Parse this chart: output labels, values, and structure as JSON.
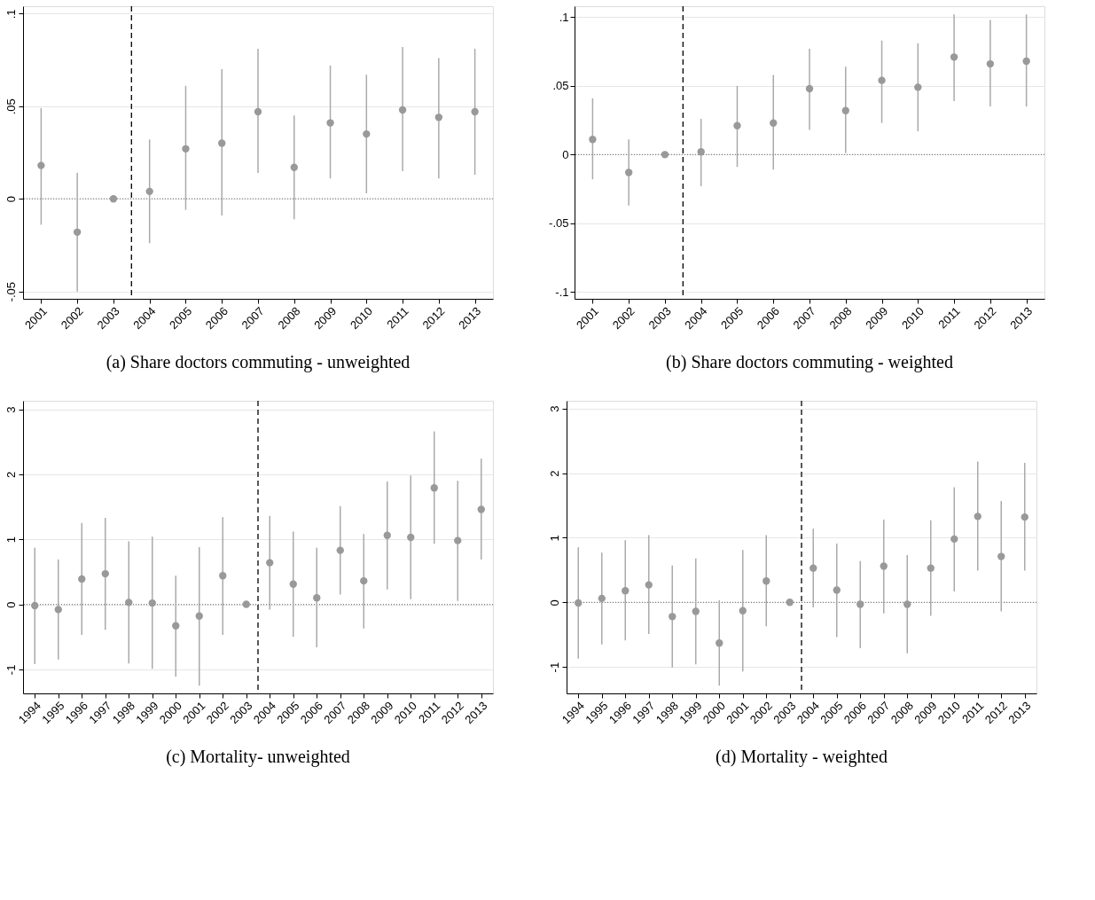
{
  "chart_data": [
    {
      "type": "scatter",
      "title": "(a) Share doctors commuting - unweighted",
      "color": "#999999",
      "marker": "circle",
      "grid": "y",
      "x": [
        2001,
        2002,
        2003,
        2004,
        2005,
        2006,
        2007,
        2008,
        2009,
        2010,
        2011,
        2012,
        2013
      ],
      "values": [
        0.018,
        -0.018,
        0,
        0.004,
        0.027,
        0.03,
        0.047,
        0.017,
        0.041,
        0.035,
        0.048,
        0.044,
        0.047
      ],
      "errors": [
        [
          -0.014,
          0.049
        ],
        [
          -0.05,
          0.014
        ],
        null,
        [
          -0.024,
          0.032
        ],
        [
          -0.006,
          0.061
        ],
        [
          -0.009,
          0.07
        ],
        [
          0.014,
          0.081
        ],
        [
          -0.011,
          0.045
        ],
        [
          0.011,
          0.072
        ],
        [
          0.003,
          0.067
        ],
        [
          0.015,
          0.082
        ],
        [
          0.011,
          0.076
        ],
        [
          0.013,
          0.081
        ]
      ],
      "xlim": [
        2000.5,
        2013.5
      ],
      "xticks": [
        2001,
        2002,
        2003,
        2004,
        2005,
        2006,
        2007,
        2008,
        2009,
        2010,
        2011,
        2012,
        2013
      ],
      "ylim": [
        -0.054,
        0.104
      ],
      "yticks": [
        {
          "value": -0.05,
          "label": "-.05"
        },
        0,
        {
          "value": 0.05,
          "label": ".05"
        },
        {
          "value": 0.1,
          "label": ".1"
        }
      ],
      "ref_lines": [
        {
          "axis": "x",
          "value": 2003.5,
          "color": "#000000",
          "line_style": "dashed"
        },
        {
          "axis": "y",
          "value": 0,
          "color": "#808080",
          "line_style": "dotted"
        }
      ]
    },
    {
      "type": "scatter",
      "title": "(b) Share doctors commuting - weighted",
      "color": "#999999",
      "marker": "circle",
      "grid": "y",
      "x": [
        2001,
        2002,
        2003,
        2004,
        2005,
        2006,
        2007,
        2008,
        2009,
        2010,
        2011,
        2012,
        2013
      ],
      "values": [
        0.011,
        -0.013,
        0,
        0.002,
        0.021,
        0.023,
        0.048,
        0.032,
        0.054,
        0.049,
        0.071,
        0.066,
        0.068
      ],
      "errors": [
        [
          -0.018,
          0.041
        ],
        [
          -0.037,
          0.011
        ],
        null,
        [
          -0.023,
          0.026
        ],
        [
          -0.009,
          0.05
        ],
        [
          -0.011,
          0.058
        ],
        [
          0.018,
          0.077
        ],
        [
          0.001,
          0.064
        ],
        [
          0.023,
          0.083
        ],
        [
          0.017,
          0.081
        ],
        [
          0.039,
          0.102
        ],
        [
          0.035,
          0.098
        ],
        [
          0.035,
          0.102
        ]
      ],
      "xlim": [
        2000.5,
        2013.5
      ],
      "xticks": [
        2001,
        2002,
        2003,
        2004,
        2005,
        2006,
        2007,
        2008,
        2009,
        2010,
        2011,
        2012,
        2013
      ],
      "ylim": [
        -0.105,
        0.108
      ],
      "yticks": [
        {
          "value": -0.1,
          "label": "-.1"
        },
        {
          "value": -0.05,
          "label": "-.05"
        },
        0,
        {
          "value": 0.05,
          "label": ".05"
        },
        {
          "value": 0.1,
          "label": ".1"
        }
      ],
      "ref_lines": [
        {
          "axis": "x",
          "value": 2003.5,
          "color": "#000000",
          "line_style": "dashed"
        },
        {
          "axis": "y",
          "value": 0,
          "color": "#808080",
          "line_style": "dotted"
        }
      ]
    },
    {
      "type": "scatter",
      "title": "(c) Mortality- unweighted",
      "color": "#999999",
      "marker": "circle",
      "grid": "y",
      "x": [
        1994,
        1995,
        1996,
        1997,
        1998,
        1999,
        2000,
        2001,
        2002,
        2003,
        2004,
        2005,
        2006,
        2007,
        2008,
        2009,
        2010,
        2011,
        2012,
        2013
      ],
      "values": [
        -0.02,
        -0.08,
        0.39,
        0.47,
        0.03,
        0.02,
        -0.33,
        -0.18,
        0.44,
        0,
        0.64,
        0.31,
        0.1,
        0.83,
        0.36,
        1.06,
        1.03,
        1.79,
        0.98,
        1.46
      ],
      "errors": [
        [
          -0.92,
          0.87
        ],
        [
          -0.85,
          0.69
        ],
        [
          -0.47,
          1.25
        ],
        [
          -0.39,
          1.33
        ],
        [
          -0.91,
          0.97
        ],
        [
          -0.99,
          1.04
        ],
        [
          -1.11,
          0.44
        ],
        [
          -1.25,
          0.88
        ],
        [
          -0.47,
          1.34
        ],
        null,
        [
          -0.08,
          1.36
        ],
        [
          -0.5,
          1.12
        ],
        [
          -0.66,
          0.87
        ],
        [
          0.15,
          1.51
        ],
        [
          -0.37,
          1.08
        ],
        [
          0.23,
          1.89
        ],
        [
          0.08,
          1.98
        ],
        [
          0.93,
          2.66
        ],
        [
          0.05,
          1.9
        ],
        [
          0.69,
          2.24
        ]
      ],
      "xlim": [
        1993.5,
        2013.5
      ],
      "xticks": [
        1994,
        1995,
        1996,
        1997,
        1998,
        1999,
        2000,
        2001,
        2002,
        2003,
        2004,
        2005,
        2006,
        2007,
        2008,
        2009,
        2010,
        2011,
        2012,
        2013
      ],
      "ylim": [
        -1.37,
        3.13
      ],
      "yticks": [
        -1,
        0,
        1,
        2,
        3
      ],
      "ref_lines": [
        {
          "axis": "x",
          "value": 2003.5,
          "color": "#000000",
          "line_style": "dashed"
        },
        {
          "axis": "y",
          "value": 0,
          "color": "#808080",
          "line_style": "dotted"
        }
      ]
    },
    {
      "type": "scatter",
      "title": "(d) Mortality - weighted",
      "color": "#999999",
      "marker": "circle",
      "grid": "y",
      "x": [
        1994,
        1995,
        1996,
        1997,
        1998,
        1999,
        2000,
        2001,
        2002,
        2003,
        2004,
        2005,
        2006,
        2007,
        2008,
        2009,
        2010,
        2011,
        2012,
        2013
      ],
      "values": [
        -0.01,
        0.06,
        0.18,
        0.27,
        -0.22,
        -0.14,
        -0.63,
        -0.13,
        0.33,
        0,
        0.53,
        0.19,
        -0.03,
        0.56,
        -0.03,
        0.53,
        0.98,
        1.33,
        0.71,
        1.32
      ],
      "errors": [
        [
          -0.87,
          0.85
        ],
        [
          -0.65,
          0.77
        ],
        [
          -0.59,
          0.96
        ],
        [
          -0.49,
          1.04
        ],
        [
          -1.01,
          0.57
        ],
        [
          -0.96,
          0.68
        ],
        [
          -1.29,
          0.03
        ],
        [
          -1.07,
          0.81
        ],
        [
          -0.37,
          1.04
        ],
        null,
        [
          -0.08,
          1.14
        ],
        [
          -0.54,
          0.91
        ],
        [
          -0.71,
          0.64
        ],
        [
          -0.17,
          1.28
        ],
        [
          -0.79,
          0.73
        ],
        [
          -0.21,
          1.27
        ],
        [
          0.17,
          1.78
        ],
        [
          0.49,
          2.18
        ],
        [
          -0.14,
          1.57
        ],
        [
          0.49,
          2.16
        ]
      ],
      "xlim": [
        1993.5,
        2013.5
      ],
      "xticks": [
        1994,
        1995,
        1996,
        1997,
        1998,
        1999,
        2000,
        2001,
        2002,
        2003,
        2004,
        2005,
        2006,
        2007,
        2008,
        2009,
        2010,
        2011,
        2012,
        2013
      ],
      "ylim": [
        -1.41,
        3.12
      ],
      "yticks": [
        -1,
        0,
        1,
        2,
        3
      ],
      "ref_lines": [
        {
          "axis": "x",
          "value": 2003.5,
          "color": "#000000",
          "line_style": "dashed"
        },
        {
          "axis": "y",
          "value": 0,
          "color": "#808080",
          "line_style": "dotted"
        }
      ]
    }
  ]
}
